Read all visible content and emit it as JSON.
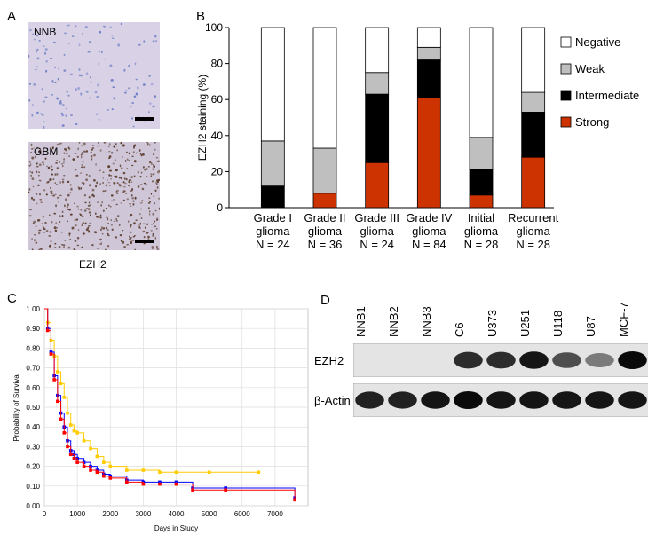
{
  "panels": {
    "a": {
      "letter": "A",
      "top_label": "NNB",
      "bottom_label": "GBM",
      "caption": "EZH2",
      "colors": {
        "nnb_bg": "#d9d2e6",
        "nnb_cell": "#6f7fc4",
        "gbm_bg": "#cfc7d8",
        "gbm_cell": "#5a3a2a"
      }
    },
    "b": {
      "letter": "B"
    },
    "c": {
      "letter": "C"
    },
    "d": {
      "letter": "D",
      "lanes": [
        "NNB1",
        "NNB2",
        "NNB3",
        "C6",
        "U373",
        "U251",
        "U118",
        "U87",
        "MCF-7"
      ],
      "rows": [
        {
          "label": "EZH2",
          "intensity": [
            0,
            0,
            0,
            0.85,
            0.85,
            0.95,
            0.7,
            0.5,
            1.0
          ]
        },
        {
          "label": "β-Actin",
          "intensity": [
            0.9,
            0.9,
            0.95,
            1.0,
            0.95,
            0.95,
            0.95,
            0.95,
            0.95
          ]
        }
      ]
    }
  },
  "chart_data": [
    {
      "type": "bar",
      "stacked": true,
      "ylabel": "EZH2 staining (%)",
      "ylim": [
        0,
        100
      ],
      "yticks": [
        0,
        20,
        40,
        60,
        80,
        100
      ],
      "categories": [
        [
          "Grade I",
          "glioma",
          "N = 24"
        ],
        [
          "Grade II",
          "glioma",
          "N = 36"
        ],
        [
          "Grade III",
          "glioma",
          "N = 24"
        ],
        [
          "Grade IV",
          "glioma",
          "N = 84"
        ],
        [
          "Initial",
          "glioma",
          "N = 28"
        ],
        [
          "Recurrent",
          "glioma",
          "N = 28"
        ]
      ],
      "series": [
        {
          "name": "Strong",
          "color": "#cc3300",
          "values": [
            0,
            8,
            25,
            61,
            7,
            28
          ]
        },
        {
          "name": "Intermediate",
          "color": "#000000",
          "values": [
            12,
            0,
            38,
            21,
            14,
            25
          ]
        },
        {
          "name": "Weak",
          "color": "#bfbfbf",
          "values": [
            25,
            25,
            12,
            7,
            18,
            11
          ]
        },
        {
          "name": "Negative",
          "color": "#ffffff",
          "values": [
            63,
            67,
            25,
            11,
            61,
            36
          ]
        }
      ],
      "legend_order": [
        "Negative",
        "Weak",
        "Intermediate",
        "Strong"
      ],
      "legend_position": "right"
    },
    {
      "type": "line",
      "step": true,
      "xlabel": "Days in Study",
      "ylabel": "Probability of Survival",
      "xlim": [
        0,
        8000
      ],
      "ylim": [
        0,
        1.0
      ],
      "xticks": [
        0,
        1000,
        2000,
        3000,
        4000,
        5000,
        6000,
        7000
      ],
      "yticks": [
        0.0,
        0.1,
        0.2,
        0.3,
        0.4,
        0.5,
        0.6,
        0.7,
        0.8,
        0.9,
        1.0
      ],
      "ytick_labels": [
        "0.00",
        "0.10",
        "0.20",
        "0.30",
        "0.40",
        "0.50",
        "0.60",
        "0.70",
        "0.80",
        "0.90",
        "1.00"
      ],
      "grid": true,
      "series": [
        {
          "color": "#ffcc00",
          "x": [
            0,
            100,
            200,
            300,
            400,
            500,
            600,
            700,
            800,
            900,
            1000,
            1200,
            1400,
            1600,
            1800,
            2000,
            2500,
            3000,
            3500,
            4000,
            5000,
            6500
          ],
          "y": [
            1.0,
            0.93,
            0.84,
            0.76,
            0.68,
            0.62,
            0.55,
            0.47,
            0.41,
            0.38,
            0.37,
            0.33,
            0.29,
            0.25,
            0.22,
            0.2,
            0.18,
            0.18,
            0.17,
            0.17,
            0.17,
            0.17
          ]
        },
        {
          "color": "#0000ff",
          "x": [
            0,
            100,
            200,
            300,
            400,
            500,
            600,
            700,
            800,
            900,
            1000,
            1200,
            1400,
            1600,
            1800,
            2000,
            2500,
            3000,
            3500,
            4000,
            4500,
            5500,
            7600
          ],
          "y": [
            1.0,
            0.9,
            0.78,
            0.66,
            0.56,
            0.47,
            0.4,
            0.33,
            0.28,
            0.26,
            0.24,
            0.22,
            0.2,
            0.18,
            0.16,
            0.15,
            0.13,
            0.12,
            0.12,
            0.12,
            0.09,
            0.09,
            0.04
          ]
        },
        {
          "color": "#ff0000",
          "x": [
            0,
            100,
            200,
            300,
            400,
            500,
            600,
            700,
            800,
            900,
            1000,
            1200,
            1400,
            1600,
            1800,
            2000,
            2500,
            3000,
            3500,
            4000,
            4500,
            5500,
            7600
          ],
          "y": [
            1.0,
            0.89,
            0.77,
            0.64,
            0.53,
            0.44,
            0.37,
            0.3,
            0.26,
            0.24,
            0.22,
            0.2,
            0.18,
            0.17,
            0.15,
            0.14,
            0.12,
            0.11,
            0.11,
            0.11,
            0.08,
            0.08,
            0.03
          ]
        }
      ]
    }
  ]
}
